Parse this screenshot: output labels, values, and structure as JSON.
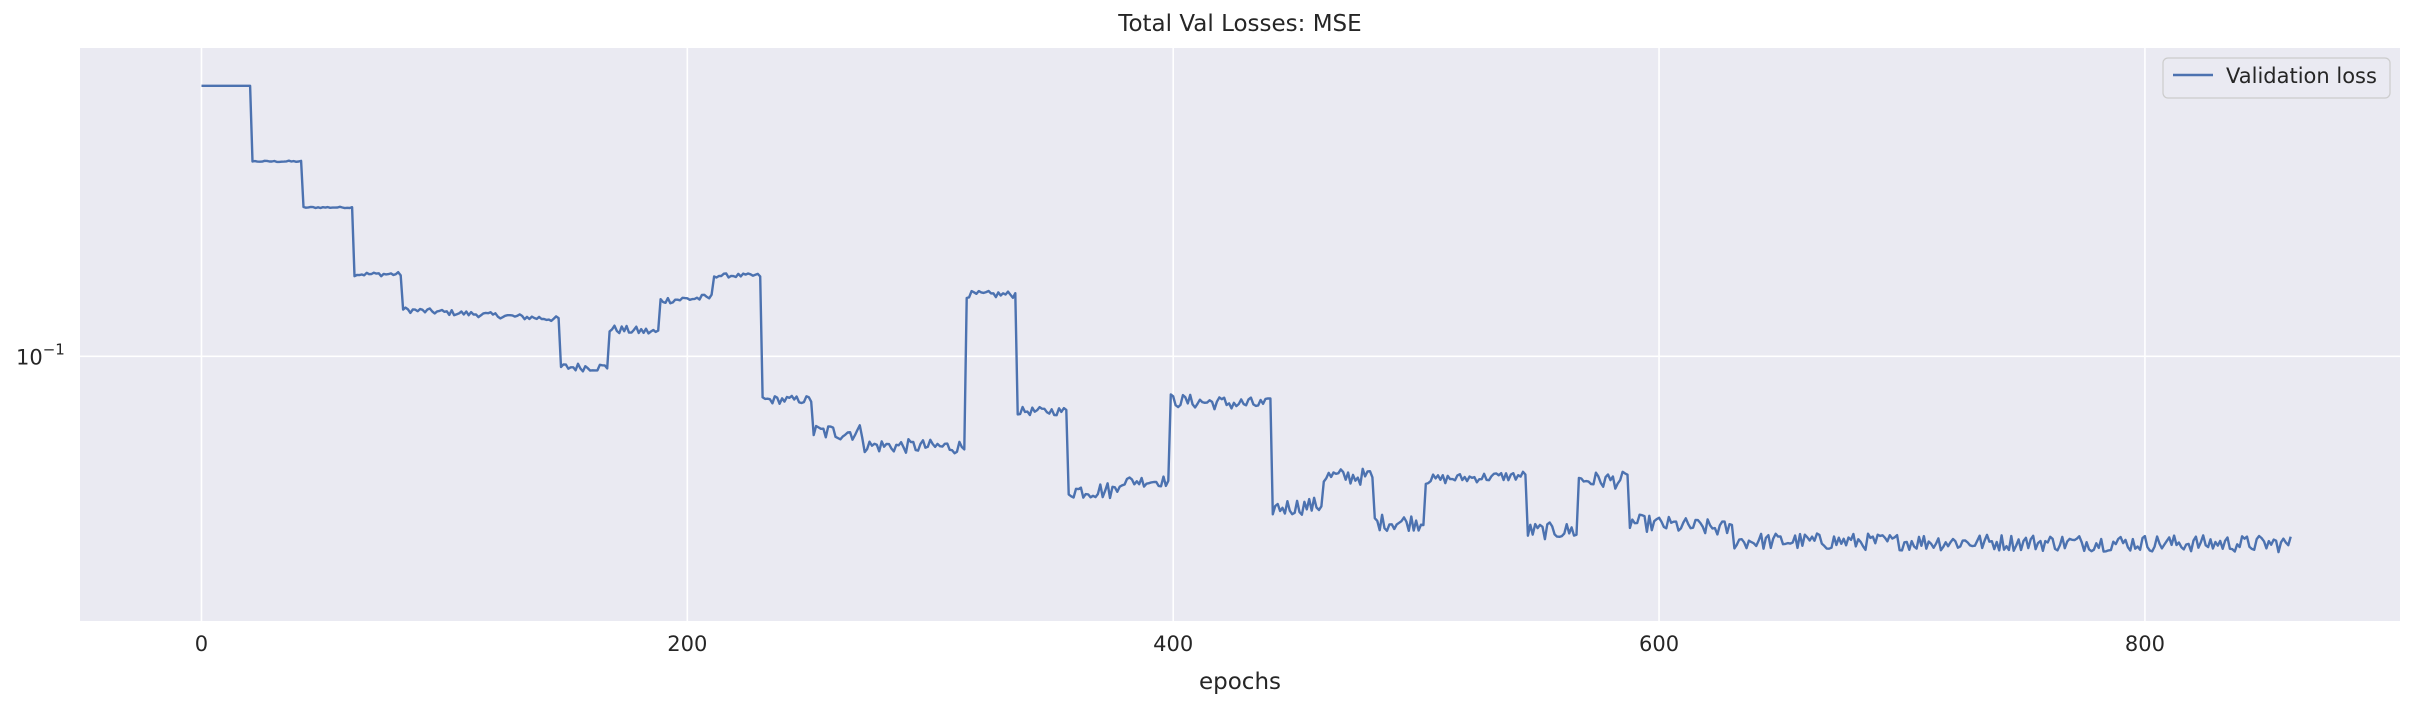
{
  "chart_data": {
    "type": "line",
    "title": "Total Val Losses:  MSE",
    "xlabel": "epochs",
    "ylabel": "",
    "y_scale": "log",
    "xlim": [
      -50,
      905
    ],
    "ylim": [
      0.0475,
      0.238
    ],
    "x_ticks": [
      0,
      200,
      400,
      600,
      800
    ],
    "y_ticks": [
      {
        "value": 0.1,
        "base": "10",
        "exponent": "−1"
      }
    ],
    "grid": true,
    "legend_position": "top-right",
    "colors": {
      "background": "#eaeaf2",
      "grid": "#ffffff",
      "series": "#4c72b0"
    },
    "series": [
      {
        "name": "Validation loss",
        "x_end": 860,
        "segments": [
          {
            "x": [
              0,
              20
            ],
            "y": [
              0.214,
              0.214
            ],
            "noise": 0.0
          },
          {
            "x": [
              21,
              41
            ],
            "y": [
              0.173,
              0.173
            ],
            "noise": 0.001
          },
          {
            "x": [
              42,
              62
            ],
            "y": [
              0.152,
              0.152
            ],
            "noise": 0.001
          },
          {
            "x": [
              63,
              82
            ],
            "y": [
              0.126,
              0.126
            ],
            "noise": 0.003
          },
          {
            "x": [
              83,
              147
            ],
            "y": [
              0.114,
              0.111
            ],
            "noise": 0.004
          },
          {
            "x": [
              148,
              167
            ],
            "y": [
              0.097,
              0.097
            ],
            "noise": 0.006
          },
          {
            "x": [
              168,
              188
            ],
            "y": [
              0.108,
              0.107
            ],
            "noise": 0.006
          },
          {
            "x": [
              189,
              210
            ],
            "y": [
              0.117,
              0.118
            ],
            "noise": 0.005
          },
          {
            "x": [
              211,
              230
            ],
            "y": [
              0.1255,
              0.1255
            ],
            "noise": 0.003
          },
          {
            "x": [
              231,
              251
            ],
            "y": [
              0.0885,
              0.0885
            ],
            "noise": 0.006
          },
          {
            "x": [
              252,
              272
            ],
            "y": [
              0.0808,
              0.0808
            ],
            "noise": 0.012
          },
          {
            "x": [
              273,
              314
            ],
            "y": [
              0.0778,
              0.0775
            ],
            "noise": 0.01
          },
          {
            "x": [
              315,
              335
            ],
            "y": [
              0.119,
              0.119
            ],
            "noise": 0.005
          },
          {
            "x": [
              336,
              356
            ],
            "y": [
              0.0857,
              0.0857
            ],
            "noise": 0.006
          },
          {
            "x": [
              357,
              377
            ],
            "y": [
              0.0686,
              0.0686
            ],
            "noise": 0.012
          },
          {
            "x": [
              378,
              398
            ],
            "y": [
              0.0704,
              0.0704
            ],
            "noise": 0.008
          },
          {
            "x": [
              399,
              440
            ],
            "y": [
              0.0883,
              0.0872
            ],
            "noise": 0.01
          },
          {
            "x": [
              441,
              461
            ],
            "y": [
              0.0653,
              0.0658
            ],
            "noise": 0.012
          },
          {
            "x": [
              462,
              482
            ],
            "y": [
              0.0713,
              0.0713
            ],
            "noise": 0.012
          },
          {
            "x": [
              483,
              503
            ],
            "y": [
              0.0627,
              0.0627
            ],
            "noise": 0.012
          },
          {
            "x": [
              504,
              545
            ],
            "y": [
              0.0707,
              0.0715
            ],
            "noise": 0.007
          },
          {
            "x": [
              546,
              566
            ],
            "y": [
              0.0612,
              0.0612
            ],
            "noise": 0.012
          },
          {
            "x": [
              567,
              587
            ],
            "y": [
              0.0706,
              0.0706
            ],
            "noise": 0.012
          },
          {
            "x": [
              588,
              630
            ],
            "y": [
              0.0627,
              0.0615
            ],
            "noise": 0.012
          },
          {
            "x": [
              631,
              860
            ],
            "y": [
              0.0595,
              0.059
            ],
            "noise": 0.012
          }
        ]
      }
    ]
  }
}
